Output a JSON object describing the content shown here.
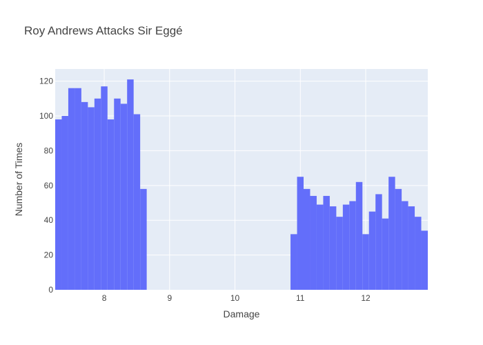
{
  "chart_data": {
    "type": "bar",
    "title": "Roy Andrews Attacks Sir Eggé",
    "xlabel": "Damage",
    "ylabel": "Number of Times",
    "bin_width": 0.1,
    "xlim": [
      7.25,
      12.95
    ],
    "ylim": [
      0,
      127
    ],
    "x_ticks": [
      8,
      9,
      10,
      11,
      12
    ],
    "y_ticks": [
      0,
      20,
      40,
      60,
      80,
      100,
      120
    ],
    "grid": true,
    "legend": "none",
    "x": [
      7.3,
      7.4,
      7.5,
      7.6,
      7.7,
      7.8,
      7.9,
      8.0,
      8.1,
      8.2,
      8.3,
      8.4,
      8.5,
      8.6,
      10.9,
      11.0,
      11.1,
      11.2,
      11.3,
      11.4,
      11.5,
      11.6,
      11.7,
      11.8,
      11.9,
      12.0,
      12.1,
      12.2,
      12.3,
      12.4,
      12.5,
      12.6,
      12.7,
      12.8,
      12.9
    ],
    "values": [
      98,
      100,
      116,
      116,
      108,
      105,
      110,
      117,
      98,
      110,
      107,
      121,
      101,
      58,
      32,
      65,
      58,
      54,
      49,
      54,
      48,
      42,
      49,
      51,
      62,
      32,
      45,
      55,
      41,
      65,
      58,
      51,
      48,
      42,
      34
    ],
    "colors": {
      "bar": "#636efa",
      "plot_bg": "#e5ecf6",
      "grid": "#ffffff",
      "text": "#444444"
    }
  }
}
